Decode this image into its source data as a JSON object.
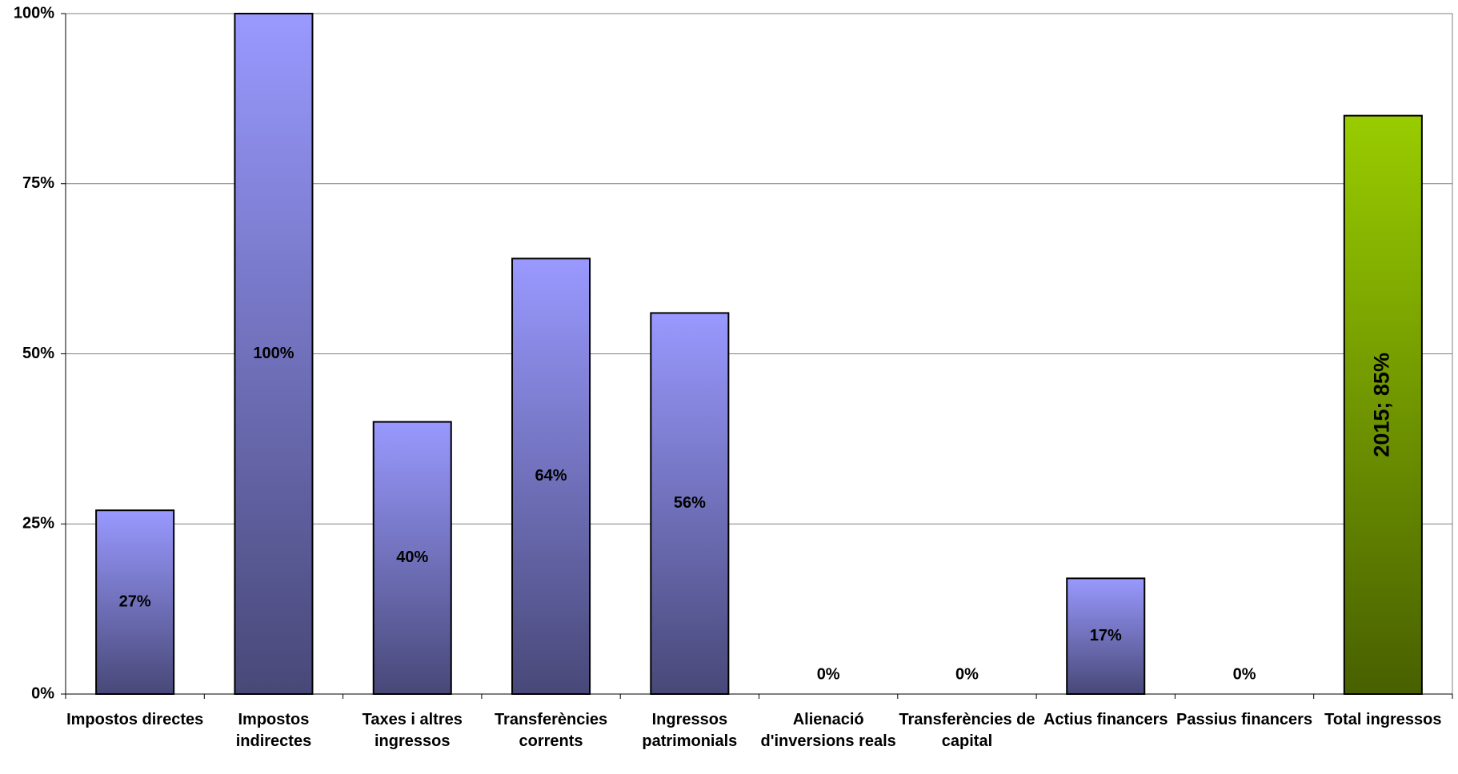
{
  "chart_data": {
    "type": "bar",
    "categories": [
      "Impostos directes",
      "Impostos indirectes",
      "Taxes i altres ingressos",
      "Transferències corrents",
      "Ingressos patrimonials",
      "Alienació d'inversions reals",
      "Transferències de capital",
      "Actius financers",
      "Passius financers",
      "Total ingressos"
    ],
    "values": [
      27,
      100,
      40,
      64,
      56,
      0,
      0,
      17,
      0,
      85
    ],
    "value_labels": [
      "27%",
      "100%",
      "40%",
      "64%",
      "56%",
      "0%",
      "0%",
      "17%",
      "0%",
      "2015; 85%"
    ],
    "colors": [
      "#9999ff",
      "#9999ff",
      "#9999ff",
      "#9999ff",
      "#9999ff",
      "#9999ff",
      "#9999ff",
      "#9999ff",
      "#9999ff",
      "#99cc00"
    ],
    "ylim": [
      0,
      100
    ],
    "yticks": [
      {
        "value": 0,
        "label": "0%"
      },
      {
        "value": 25,
        "label": "25%"
      },
      {
        "value": 50,
        "label": "50%"
      },
      {
        "value": 75,
        "label": "75%"
      },
      {
        "value": 100,
        "label": "100%"
      }
    ],
    "grid": true
  }
}
